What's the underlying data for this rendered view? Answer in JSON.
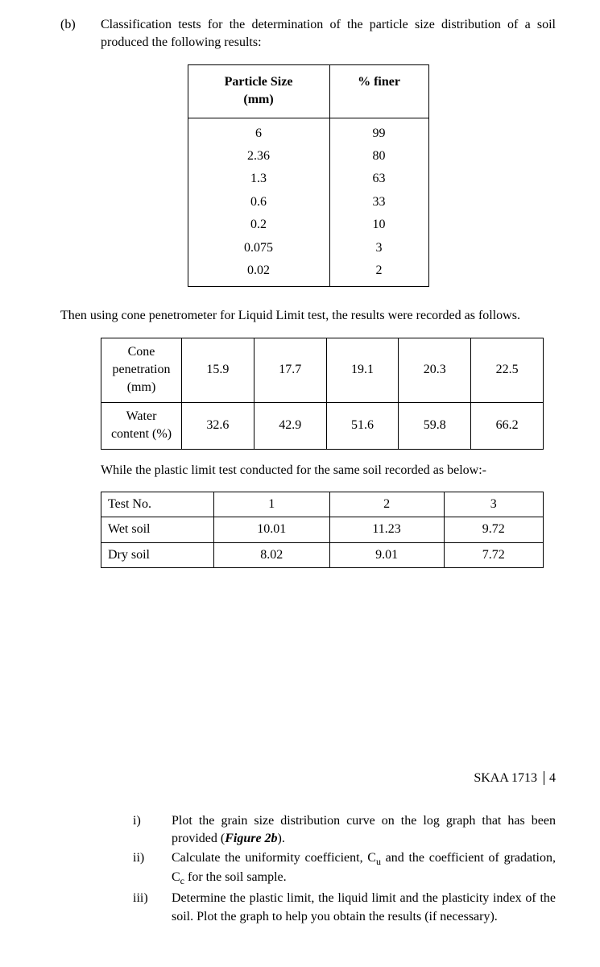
{
  "section": {
    "label": "(b)",
    "intro": "Classification tests for the determination of the particle size distribution of a soil produced the following results:"
  },
  "particle_table": {
    "header_col1_line1": "Particle Size",
    "header_col1_line2": "(mm)",
    "header_col2": "% finer",
    "rows": [
      {
        "size": "6",
        "finer": "99"
      },
      {
        "size": "2.36",
        "finer": "80"
      },
      {
        "size": "1.3",
        "finer": "63"
      },
      {
        "size": "0.6",
        "finer": "33"
      },
      {
        "size": "0.2",
        "finer": "10"
      },
      {
        "size": "0.075",
        "finer": "3"
      },
      {
        "size": "0.02",
        "finer": "2"
      }
    ]
  },
  "cone_intro": "Then using cone penetrometer for Liquid Limit test, the results were recorded as follows.",
  "cone_table": {
    "row1_header": "Cone penetration (mm)",
    "row1": [
      "15.9",
      "17.7",
      "19.1",
      "20.3",
      "22.5"
    ],
    "row2_header": "Water content (%)",
    "row2": [
      "32.6",
      "42.9",
      "51.6",
      "59.8",
      "66.2"
    ]
  },
  "plastic_intro": "While the plastic limit test conducted for the same soil recorded as below:-",
  "plastic_table": {
    "header_row": [
      "Test No.",
      "1",
      "2",
      "3"
    ],
    "row1": [
      "Wet soil",
      "10.01",
      "11.23",
      "9.72"
    ],
    "row2": [
      "Dry soil",
      "8.02",
      "9.01",
      "7.72"
    ]
  },
  "footer": {
    "course": "SKAA 1713",
    "page": "4"
  },
  "sub_i": {
    "label": "i)",
    "text_before": "Plot the grain size distribution curve on the log graph that has been provided (",
    "figure_ref": "Figure 2b",
    "text_after": ")."
  },
  "sub_ii": {
    "label": "ii)",
    "text_p1": "Calculate the uniformity coefficient, C",
    "sub1": "u",
    "text_p2": " and the coefficient of gradation, C",
    "sub2": "c",
    "text_p3": " for the soil sample."
  },
  "sub_iii": {
    "label": "iii)",
    "text": "Determine the plastic limit, the liquid limit and the plasticity index of the soil. Plot the graph to help you obtain the results (if necessary)."
  }
}
